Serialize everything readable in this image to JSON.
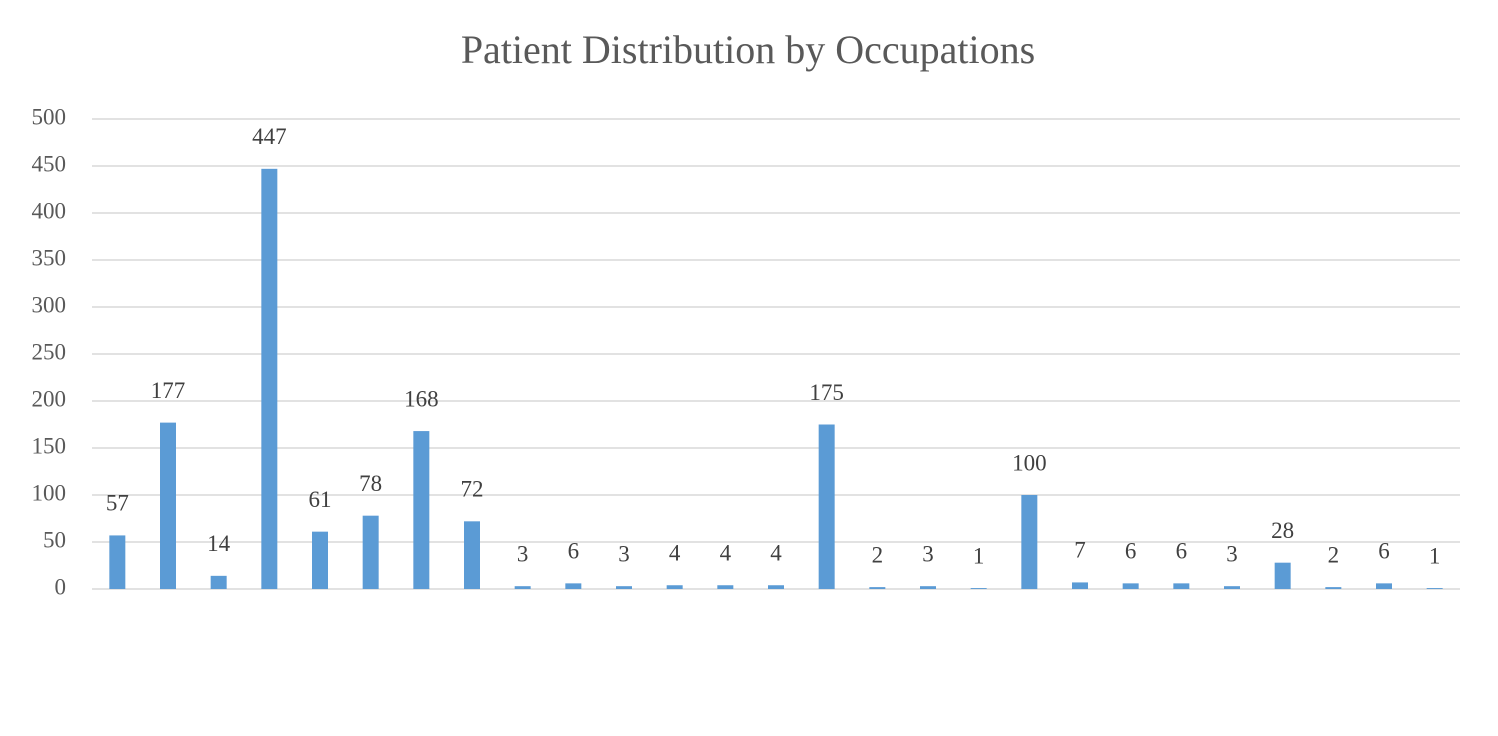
{
  "chart_data": {
    "type": "bar",
    "title": "Patient Distribution by Occupations",
    "categories": [
      null,
      null,
      null,
      null,
      null,
      null,
      null,
      null,
      null,
      null,
      null,
      null,
      null,
      null,
      null,
      null,
      null,
      null,
      null,
      null,
      null,
      null,
      null,
      null,
      null,
      null,
      null
    ],
    "values": [
      57,
      177,
      14,
      447,
      61,
      78,
      168,
      72,
      3,
      6,
      3,
      4,
      4,
      4,
      175,
      2,
      3,
      1,
      100,
      7,
      6,
      6,
      3,
      28,
      2,
      6,
      1
    ],
    "color": "#5b9bd5",
    "ylim": [
      0,
      500
    ],
    "yticks": [
      0,
      50,
      100,
      150,
      200,
      250,
      300,
      350,
      400,
      450,
      500
    ],
    "grid": true
  }
}
